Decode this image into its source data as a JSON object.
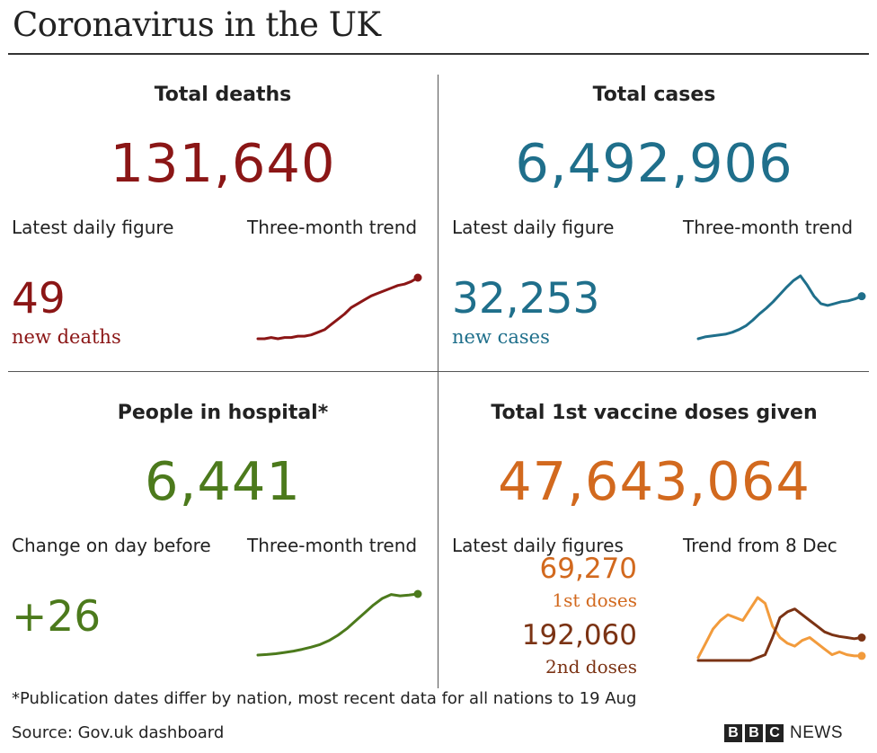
{
  "title": "Coronavirus in the UK",
  "colors": {
    "deaths": "#8b1616",
    "cases": "#1f6f8b",
    "hospital": "#4c7a1c",
    "vaccine": "#d2691e",
    "first_dose": "#f29b3c",
    "second_dose": "#7b3314"
  },
  "deaths": {
    "heading": "Total deaths",
    "total": "131,640",
    "latest_label": "Latest daily figure",
    "trend_label": "Three-month trend",
    "daily_value": "49",
    "daily_unit": "new deaths"
  },
  "cases": {
    "heading": "Total cases",
    "total": "6,492,906",
    "latest_label": "Latest daily figure",
    "trend_label": "Three-month trend",
    "daily_value": "32,253",
    "daily_unit": "new cases"
  },
  "hospital": {
    "heading": "People in hospital*",
    "total": "6,441",
    "change_label": "Change on day before",
    "trend_label": "Three-month trend",
    "change_value": "+26"
  },
  "vaccine": {
    "heading": "Total 1st vaccine doses given",
    "total": "47,643,064",
    "latest_label": "Latest daily figures",
    "trend_label": "Trend from 8 Dec",
    "first_value": "69,270",
    "first_unit": "1st doses",
    "second_value": "192,060",
    "second_unit": "2nd doses"
  },
  "footnote": "*Publication dates differ by nation, most recent data for all nations to 19 Aug",
  "source": "Source: Gov.uk dashboard",
  "logo": {
    "letters": [
      "B",
      "B",
      "C"
    ],
    "word": "NEWS"
  },
  "chart_data": [
    {
      "type": "line",
      "series": [
        {
          "values": [
            3,
            3,
            4,
            3,
            4,
            4,
            5,
            5,
            6,
            8,
            10,
            14,
            18,
            22,
            27,
            30,
            33,
            36,
            38,
            40,
            42,
            44,
            45,
            47,
            50
          ]
        }
      ]
    },
    {
      "type": "line",
      "series": [
        {
          "values": [
            2,
            4,
            5,
            6,
            7,
            9,
            12,
            16,
            22,
            29,
            35,
            42,
            50,
            58,
            65,
            70,
            60,
            48,
            40,
            38,
            40,
            42,
            43,
            45,
            48
          ]
        }
      ]
    },
    {
      "type": "line",
      "series": [
        {
          "values": [
            40,
            42,
            45,
            50,
            55,
            62,
            70,
            80,
            95,
            115,
            140,
            170,
            200,
            230,
            255,
            270,
            265,
            268,
            272
          ]
        }
      ]
    },
    {
      "type": "line",
      "series": [
        {
          "name": "1st doses",
          "values": [
            5,
            30,
            55,
            70,
            80,
            75,
            70,
            90,
            110,
            100,
            60,
            40,
            30,
            25,
            35,
            40,
            30,
            20,
            10,
            15,
            10,
            8,
            8
          ]
        },
        {
          "name": "2nd doses",
          "values": [
            0,
            0,
            0,
            0,
            0,
            0,
            0,
            0,
            5,
            10,
            40,
            75,
            85,
            90,
            80,
            70,
            60,
            50,
            45,
            42,
            40,
            38,
            40
          ]
        }
      ]
    }
  ]
}
